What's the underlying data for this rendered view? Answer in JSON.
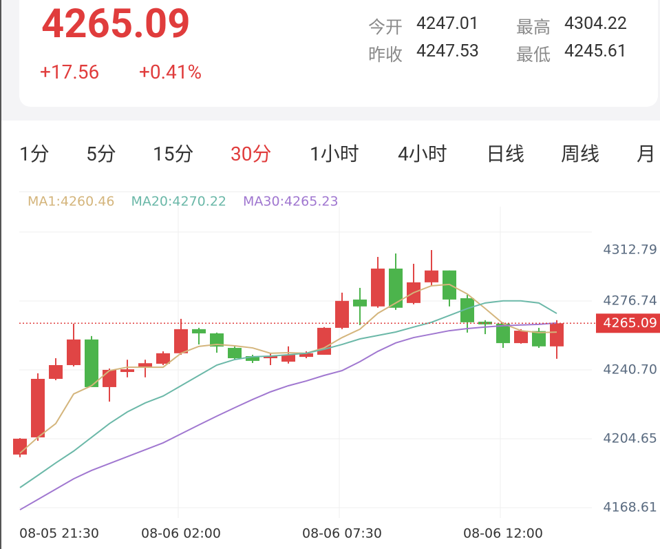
{
  "header": {
    "price": "4265.09",
    "change": "+17.56",
    "change_pct": "+0.41%",
    "stats": [
      {
        "label": "今开",
        "value": "4247.01"
      },
      {
        "label": "最高",
        "value": "4304.22"
      },
      {
        "label": "昨收",
        "value": "4247.53"
      },
      {
        "label": "最低",
        "value": "4245.61"
      }
    ]
  },
  "tabs": {
    "items": [
      "1分",
      "5分",
      "15分",
      "30分",
      "1小时",
      "4小时",
      "日线",
      "周线",
      "月"
    ],
    "active": 3
  },
  "chart_data": {
    "type": "candlestick",
    "categories": [
      "08-05 21:30",
      null,
      null,
      null,
      null,
      null,
      null,
      null,
      null,
      "08-06 02:00",
      null,
      null,
      null,
      null,
      null,
      null,
      null,
      null,
      "08-06 07:30",
      null,
      null,
      null,
      null,
      null,
      null,
      null,
      null,
      "08-06 12:00",
      null,
      null,
      null
    ],
    "open": [
      4196.4,
      4205.4,
      4236.0,
      4243.2,
      4256.6,
      4231.7,
      4239.6,
      4242.1,
      4243.9,
      4249.4,
      4262.0,
      4259.8,
      4252.2,
      4247.9,
      4246.8,
      4245.0,
      4247.5,
      4248.6,
      4262.7,
      4277.5,
      4273.9,
      4293.7,
      4275.7,
      4286.5,
      4292.7,
      4278.2,
      4265.9,
      4264.9,
      4254.7,
      4261.0,
      4253.0
    ],
    "high": [
      4205.0,
      4238.9,
      4246.8,
      4264.9,
      4258.4,
      4241.4,
      4246.0,
      4246.0,
      4250.4,
      4267.4,
      4262.7,
      4260.2,
      4252.9,
      4248.6,
      4249.4,
      4253.0,
      4250.4,
      4263.1,
      4281.1,
      4283.6,
      4299.8,
      4301.6,
      4296.2,
      4303.4,
      4292.7,
      4280.0,
      4266.7,
      4265.6,
      4262.0,
      4262.7,
      4266.7
    ],
    "low": [
      4195.0,
      4203.6,
      4235.3,
      4242.5,
      4231.7,
      4224.1,
      4236.8,
      4236.8,
      4243.2,
      4248.6,
      4254.0,
      4249.7,
      4246.1,
      4244.3,
      4243.2,
      4244.0,
      4246.8,
      4248.6,
      4262.0,
      4264.1,
      4273.2,
      4272.1,
      4275.0,
      4284.7,
      4273.9,
      4260.2,
      4259.4,
      4252.2,
      4254.4,
      4252.2,
      4246.5
    ],
    "close": [
      4204.7,
      4236.0,
      4243.2,
      4256.6,
      4231.7,
      4240.7,
      4241.0,
      4244.2,
      4249.4,
      4262.0,
      4259.8,
      4252.9,
      4246.8,
      4245.4,
      4247.9,
      4248.6,
      4249.4,
      4262.7,
      4276.8,
      4273.9,
      4293.7,
      4273.2,
      4286.5,
      4292.7,
      4277.5,
      4265.6,
      4264.5,
      4254.7,
      4261.2,
      4253.0,
      4265.09
    ],
    "up_color": "#e04545",
    "down_color": "#4cb44c",
    "series": [
      {
        "name": "MA1:4260.46",
        "color": "#d4b57c",
        "values": [
          4197.1,
          4205.4,
          4212.6,
          4228.1,
          4232.4,
          4240.3,
          4242.1,
          4242.1,
          4242.1,
          4249.4,
          4253.0,
          4254.0,
          4253.3,
          4252.2,
          4249.4,
          4249.7,
          4249.4,
          4252.2,
          4257.6,
          4262.0,
          4270.3,
          4275.7,
          4281.1,
          4284.7,
          4285.4,
          4280.4,
          4272.8,
          4264.9,
          4261.2,
          4260.2,
          4260.46
        ]
      },
      {
        "name": "MA20:4270.22",
        "color": "#6bb8a8",
        "values": [
          4179.1,
          4185.5,
          4192.0,
          4198.2,
          4205.4,
          4212.6,
          4218.7,
          4223.4,
          4227.0,
          4232.4,
          4237.8,
          4243.2,
          4246.1,
          4247.6,
          4247.9,
          4248.6,
          4249.4,
          4251.5,
          4254.0,
          4256.9,
          4258.7,
          4260.5,
          4263.1,
          4265.6,
          4269.2,
          4272.8,
          4275.7,
          4276.8,
          4276.8,
          4275.7,
          4270.22
        ]
      },
      {
        "name": "MA30:4265.23",
        "color": "#a077d0",
        "values": [
          4167.5,
          4172.9,
          4178.3,
          4183.7,
          4188.1,
          4191.7,
          4195.3,
          4198.9,
          4202.5,
          4207.2,
          4211.9,
          4216.5,
          4220.9,
          4225.2,
          4229.2,
          4232.4,
          4234.9,
          4237.8,
          4240.3,
          4245.0,
          4250.4,
          4254.8,
          4257.6,
          4259.4,
          4261.2,
          4262.3,
          4263.1,
          4263.8,
          4264.2,
          4264.5,
          4265.23
        ]
      }
    ],
    "ylim": [
      4163.2,
      4326.1
    ],
    "yticks": [
      {
        "value": 4168.61,
        "label": "4168.61"
      },
      {
        "value": 4204.65,
        "label": "4204.65"
      },
      {
        "value": 4240.7,
        "label": "4240.70"
      },
      {
        "value": 4276.74,
        "label": "4276.74"
      },
      {
        "value": 4312.79,
        "label": "4312.79"
      }
    ],
    "grid": true,
    "last_price": 4265.09,
    "last_price_color": "#e03c3c"
  }
}
